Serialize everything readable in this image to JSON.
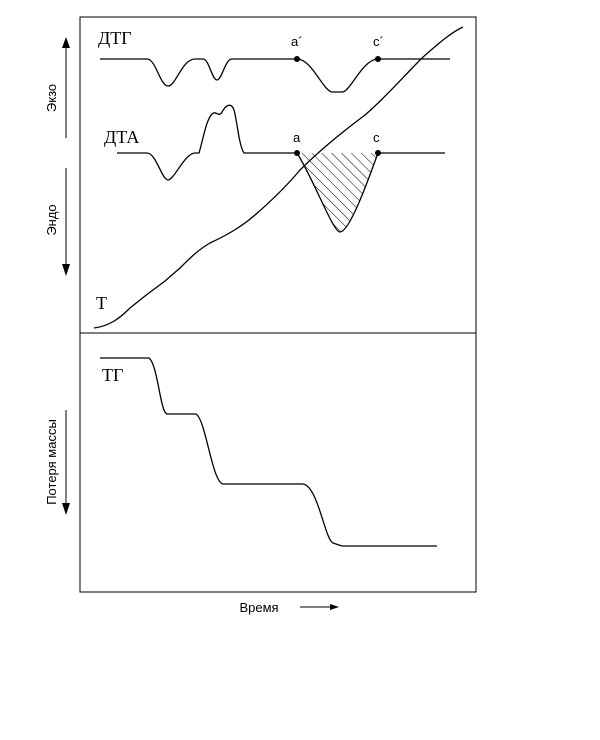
{
  "curves": {
    "dtg": {
      "label": "ДТГ"
    },
    "dta": {
      "label": "ДТА"
    },
    "t": {
      "label": "Т"
    },
    "tg": {
      "label": "ТГ"
    }
  },
  "points": {
    "a_prime": "a´",
    "c_prime": "c´",
    "a": "a",
    "c": "c"
  },
  "axes": {
    "exo": "Экзо",
    "endo": "Эндо",
    "mass_loss": "Потеря массы",
    "time": "Время"
  }
}
